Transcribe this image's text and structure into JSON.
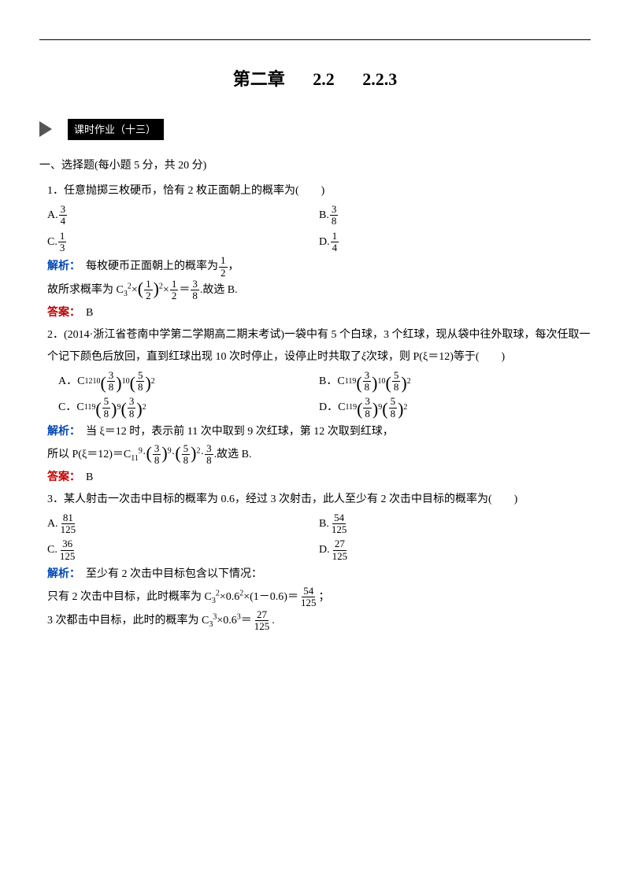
{
  "chapter": {
    "part1": "第二章",
    "part2": "2.2",
    "part3": "2.2.3"
  },
  "banner": "课时作业（十三）",
  "section1": "一、选择题(每小题 5 分，共 20 分)",
  "q1": {
    "stem": "1．任意抛掷三枚硬币，恰有 2 枚正面朝上的概率为(　　)",
    "A_n": "3",
    "A_d": "4",
    "B_n": "3",
    "B_d": "8",
    "C_n": "1",
    "C_d": "3",
    "D_n": "1",
    "D_d": "4",
    "expl_pre": "　每枚硬币正面朝上的概率为",
    "expl_f1n": "1",
    "expl_f1d": "2",
    "expl_post": "，",
    "line2_pre": "故所求概率为 C",
    "line2_sub": "3",
    "line2_sup": "2",
    "line2_mid": "×",
    "line2_f1n": "1",
    "line2_f1d": "2",
    "line2_pow1": "2",
    "line2_x": "×",
    "line2_f2n": "1",
    "line2_f2d": "2",
    "line2_eq": "＝",
    "line2_f3n": "3",
    "line2_f3d": "8",
    "line2_end": ".故选 B.",
    "ans": "　B"
  },
  "q2": {
    "stem1": "2．(2014·浙江省苍南中学第二学期高二期末考试)一袋中有 5 个白球，3 个红球，现从袋中往外取球，每次任取一个记下颜色后放回，直到红球出现 10 次时停止，设停止时共取了",
    "stem_mid": "ξ",
    "stem2": "次球，则 P(ξ＝12)等于(　　)",
    "A_pre": "A．C",
    "A_a": "12",
    "A_b": "10",
    "A_f1n": "3",
    "A_f1d": "8",
    "A_p1": "10",
    "A_f2n": "5",
    "A_f2d": "8",
    "A_p2": "2",
    "B_pre": "B．C",
    "B_a": "11",
    "B_b": "9",
    "B_f1n": "3",
    "B_f1d": "8",
    "B_p1": "10",
    "B_f2n": "5",
    "B_f2d": "8",
    "B_p2": "2",
    "C_pre": "C．C",
    "C_a": "11",
    "C_b": "9",
    "C_f1n": "5",
    "C_f1d": "8",
    "C_p1": "9",
    "C_f2n": "3",
    "C_f2d": "8",
    "C_p2": "2",
    "D_pre": "D．C",
    "D_a": "11",
    "D_b": "9",
    "D_f1n": "3",
    "D_f1d": "8",
    "D_p1": "9",
    "D_f2n": "5",
    "D_f2d": "8",
    "D_p2": "2",
    "expl1": "　当 ξ＝12 时，表示前 11 次中取到 9 次红球，第 12 次取到红球，",
    "expl2_pre": "所以 P(ξ＝12)＝C",
    "expl2_a": "11",
    "expl2_b": "9",
    "expl2_dot": "·",
    "expl2_f1n": "3",
    "expl2_f1d": "8",
    "expl2_p1": "9",
    "expl2_dot2": "·",
    "expl2_f2n": "5",
    "expl2_f2d": "8",
    "expl2_p2": "2",
    "expl2_dot3": "·",
    "expl2_f3n": "3",
    "expl2_f3d": "8",
    "expl2_end": ".故选 B.",
    "ans": "　B"
  },
  "q3": {
    "stem": "3．某人射击一次击中目标的概率为 0.6，经过 3 次射击，此人至少有 2 次击中目标的概率为(　　)",
    "A_n": "81",
    "A_d": "125",
    "B_n": "54",
    "B_d": "125",
    "C_n": "36",
    "C_d": "125",
    "D_n": "27",
    "D_d": "125",
    "expl1": "　至少有 2 次击中目标包含以下情况：",
    "expl2_pre": "只有 2 次击中目标，此时概率为 C",
    "expl2_a": "3",
    "expl2_b": "2",
    "expl2_mid": "×0.6",
    "expl2_pow1": "2",
    "expl2_mid2": "×(1－0.6)＝",
    "expl2_fn": "54",
    "expl2_fd": "125",
    "expl2_end": "；",
    "expl3_pre": "3 次都击中目标，此时的概率为 C",
    "expl3_a": "3",
    "expl3_b": "3",
    "expl3_mid": "×0.6",
    "expl3_pow": "3",
    "expl3_eq": "＝",
    "expl3_fn": "27",
    "expl3_fd": "125",
    "expl3_end": "."
  },
  "labels": {
    "expl": "解析：",
    "ans": "答案："
  }
}
